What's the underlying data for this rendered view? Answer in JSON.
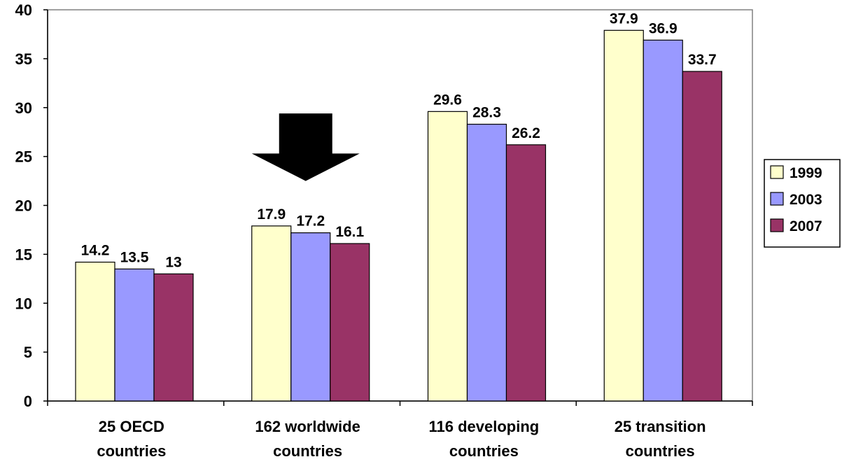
{
  "chart_data": {
    "type": "bar",
    "categories": [
      [
        "25 OECD",
        "countries"
      ],
      [
        "162 worldwide",
        "countries"
      ],
      [
        "116 developing",
        "countries"
      ],
      [
        "25 transition",
        "countries"
      ]
    ],
    "series": [
      {
        "name": "1999",
        "color": "#ffffcc",
        "values": [
          14.2,
          17.9,
          29.6,
          37.9
        ]
      },
      {
        "name": "2003",
        "color": "#9999ff",
        "values": [
          13.5,
          17.2,
          28.3,
          36.9
        ]
      },
      {
        "name": "2007",
        "color": "#993366",
        "values": [
          13,
          16.1,
          26.2,
          33.7
        ]
      }
    ],
    "ylim": [
      0,
      40
    ],
    "yticks": [
      0,
      5,
      10,
      15,
      20,
      25,
      30,
      35,
      40
    ],
    "grid": false,
    "legend": "right",
    "annotation": {
      "shape": "down-arrow",
      "category": 1,
      "color": "#000000"
    }
  }
}
